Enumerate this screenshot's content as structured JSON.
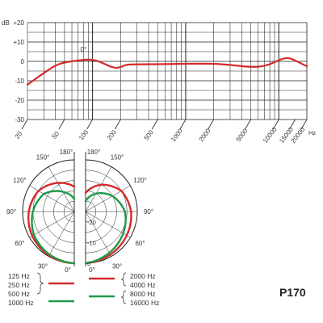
{
  "product_name": "P170",
  "chart_data": [
    {
      "type": "line",
      "title": "",
      "xlabel": "Hz",
      "ylabel": "dB",
      "xscale": "log",
      "xlim": [
        20,
        20000
      ],
      "ylim": [
        -30,
        20
      ],
      "x_tick_labels": [
        "20",
        "50",
        "100",
        "200",
        "500",
        "1000",
        "2000",
        "5000",
        "10000",
        "15000",
        "20000"
      ],
      "x_tick_values": [
        20,
        50,
        100,
        200,
        500,
        1000,
        2000,
        5000,
        10000,
        15000,
        20000
      ],
      "y_tick_labels": [
        "+20",
        "+10",
        "0",
        "-10",
        "-20",
        "-30"
      ],
      "y_tick_values": [
        20,
        10,
        0,
        -10,
        -20,
        -30
      ],
      "grid": true,
      "annotations": [
        {
          "text": "0°",
          "x": 80,
          "y": 2.5
        }
      ],
      "series": [
        {
          "color": "#d42a2a",
          "points": [
            [
              20,
              -12
            ],
            [
              30,
              -6
            ],
            [
              40,
              -2
            ],
            [
              50,
              -0.5
            ],
            [
              70,
              0.5
            ],
            [
              90,
              1
            ],
            [
              110,
              0.5
            ],
            [
              130,
              -1
            ],
            [
              160,
              -3
            ],
            [
              190,
              -3.5
            ],
            [
              220,
              -2
            ],
            [
              250,
              -1.5
            ],
            [
              500,
              -1.5
            ],
            [
              1000,
              -1.2
            ],
            [
              2000,
              -1.2
            ],
            [
              3000,
              -1.8
            ],
            [
              5000,
              -3
            ],
            [
              7000,
              -2.5
            ],
            [
              9000,
              -0.5
            ],
            [
              11000,
              1.5
            ],
            [
              13000,
              1.8
            ],
            [
              15000,
              0.5
            ],
            [
              18000,
              -1.5
            ],
            [
              20000,
              -2.5
            ]
          ]
        }
      ]
    },
    {
      "type": "polar",
      "angle_labels_left": [
        "180°",
        "150°",
        "120°",
        "90°",
        "60°",
        "30°",
        "0°"
      ],
      "angle_labels_right": [
        "180°",
        "150°",
        "120°",
        "90°",
        "60°",
        "30°",
        "0°"
      ],
      "radial_labels": [
        "-20",
        "-10",
        "0"
      ],
      "radial_db_ticks": [
        -20,
        -10,
        0
      ],
      "radial_range_db": [
        -25,
        0
      ],
      "grid": true,
      "left_series": [
        {
          "color": "#d42a2a",
          "legend": [
            "125 Hz",
            "250 Hz",
            "500 Hz"
          ],
          "points": [
            [
              0,
              0
            ],
            [
              30,
              -0.5
            ],
            [
              60,
              -1.5
            ],
            [
              90,
              -3
            ],
            [
              120,
              -5
            ],
            [
              150,
              -9
            ],
            [
              180,
              -13
            ]
          ]
        },
        {
          "color": "#1f9a4a",
          "legend": [
            "1000 Hz"
          ],
          "points": [
            [
              0,
              0
            ],
            [
              30,
              -1
            ],
            [
              60,
              -2.5
            ],
            [
              90,
              -5
            ],
            [
              120,
              -8
            ],
            [
              150,
              -14
            ],
            [
              180,
              -19
            ]
          ]
        }
      ],
      "right_series": [
        {
          "color": "#d42a2a",
          "legend": [
            "2000 Hz",
            "4000 Hz"
          ],
          "points": [
            [
              0,
              0
            ],
            [
              30,
              -1
            ],
            [
              60,
              -2
            ],
            [
              90,
              -3
            ],
            [
              120,
              -5
            ],
            [
              150,
              -10
            ],
            [
              180,
              -16
            ]
          ]
        },
        {
          "color": "#1f9a4a",
          "legend": [
            "8000 Hz",
            "16000 Hz"
          ],
          "points": [
            [
              0,
              0
            ],
            [
              30,
              -2
            ],
            [
              60,
              -4
            ],
            [
              90,
              -6
            ],
            [
              120,
              -10
            ],
            [
              150,
              -15
            ],
            [
              180,
              -20
            ]
          ]
        }
      ]
    }
  ]
}
